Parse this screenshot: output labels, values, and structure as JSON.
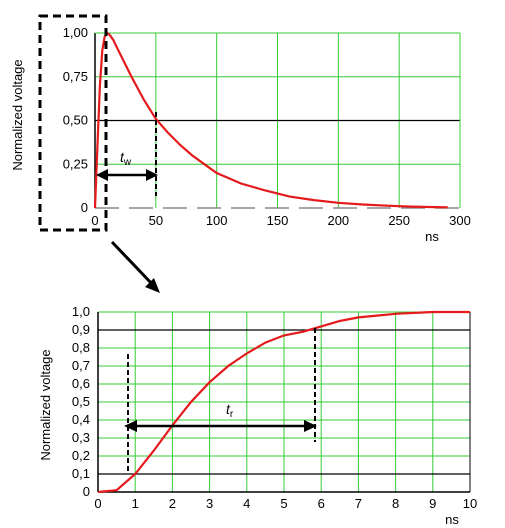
{
  "chart_data": [
    {
      "type": "line",
      "title": "",
      "xlabel": "ns",
      "ylabel": "Normalized voltage",
      "xlim": [
        0,
        300
      ],
      "ylim": [
        0,
        1
      ],
      "x_ticks": [
        "0",
        "50",
        "100",
        "150",
        "200",
        "250",
        "300"
      ],
      "y_ticks": [
        "0",
        "0,25",
        "0,50",
        "0,75",
        "1,00"
      ],
      "grid": true,
      "series": [
        {
          "color": "#e41a1c",
          "x": [
            0,
            2,
            4,
            6,
            8,
            10,
            12,
            15,
            20,
            25,
            30,
            40,
            50,
            60,
            70,
            80,
            90,
            100,
            120,
            140,
            160,
            180,
            200,
            220,
            240,
            260,
            280,
            290
          ],
          "y": [
            0,
            0.35,
            0.7,
            0.9,
            0.98,
            1.0,
            0.99,
            0.96,
            0.89,
            0.82,
            0.75,
            0.62,
            0.51,
            0.43,
            0.36,
            0.3,
            0.25,
            0.2,
            0.14,
            0.1,
            0.065,
            0.045,
            0.03,
            0.02,
            0.013,
            0.008,
            0.005,
            0.004
          ]
        }
      ],
      "annotation": {
        "symbol": "t",
        "subscript": "w",
        "from": 0,
        "to": 50,
        "y": 0.28
      }
    },
    {
      "type": "line",
      "title": "",
      "xlabel": "ns",
      "ylabel": "Normalized voltage",
      "xlim": [
        0,
        10
      ],
      "ylim": [
        0,
        1
      ],
      "x_ticks": [
        "0",
        "1",
        "2",
        "3",
        "4",
        "5",
        "6",
        "7",
        "8",
        "9",
        "10"
      ],
      "y_ticks": [
        "0",
        "0,1",
        "0,2",
        "0,3",
        "0,4",
        "0,5",
        "0,6",
        "0,7",
        "0,8",
        "0,9",
        "1,0"
      ],
      "grid": true,
      "series": [
        {
          "color": "#e41a1c",
          "x": [
            0,
            0.5,
            1,
            1.5,
            2,
            2.5,
            3,
            3.5,
            4,
            4.5,
            5,
            5.5,
            6,
            6.5,
            7,
            7.5,
            8,
            8.5,
            9,
            9.5,
            10
          ],
          "y": [
            0,
            0.01,
            0.1,
            0.23,
            0.37,
            0.5,
            0.61,
            0.7,
            0.77,
            0.83,
            0.87,
            0.89,
            0.92,
            0.95,
            0.97,
            0.98,
            0.99,
            0.995,
            1.0,
            1.0,
            1.0
          ]
        }
      ],
      "annotation": {
        "symbol": "t",
        "subscript": "r",
        "from": 0.8,
        "to": 5.8,
        "y": 0.36
      }
    }
  ]
}
